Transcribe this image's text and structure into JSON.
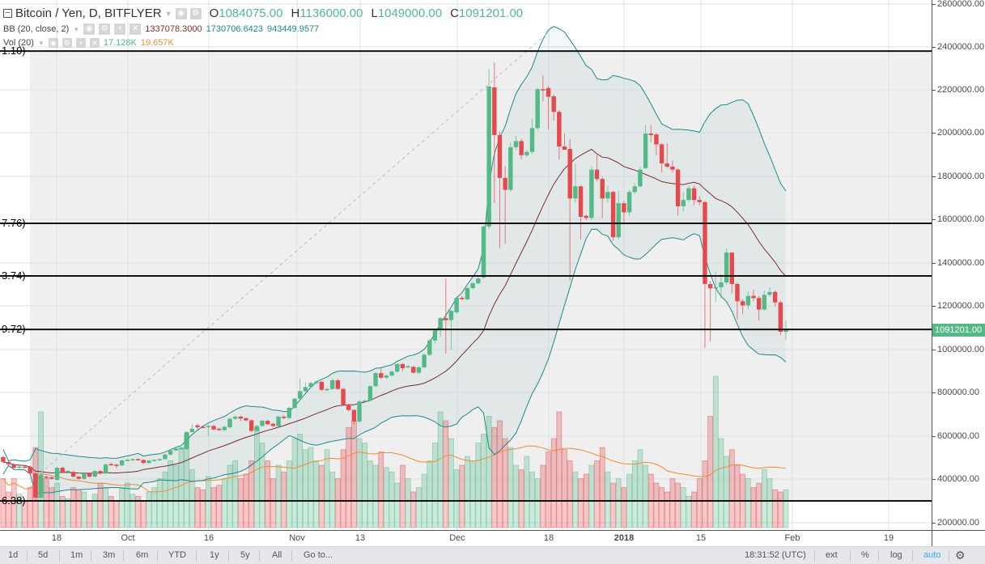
{
  "header": {
    "symbol": "Bitcoin / Yen, D, BITFLYER",
    "ohlc": [
      {
        "k": "O",
        "v": "1084075.00"
      },
      {
        "k": "H",
        "v": "1136000.00"
      },
      {
        "k": "L",
        "v": "1049000.00"
      },
      {
        "k": "C",
        "v": "1091201.00"
      }
    ],
    "bb": {
      "label": "BB (20, close, 2)",
      "basis": "1337078.3000",
      "upper": "1730706.6423",
      "lower": "943449.9577"
    },
    "vol": {
      "label": "Vol (20)",
      "value": "17.128K",
      "ma": "19.657K"
    }
  },
  "colors": {
    "up": "#53b987",
    "down": "#e5494d",
    "bb_band": "#1f8a8a",
    "bb_basis": "#7a2e2e",
    "vol_ma": "#f28c38",
    "price_tag": "#53b987",
    "accent": "#2fb5e6"
  },
  "price_axis": {
    "ticks": [
      "2600000.00",
      "2400000.00",
      "2200000.00",
      "2000000.00",
      "1800000.00",
      "1600000.00",
      "1400000.00",
      "1200000.00",
      "1000000.00",
      "800000.00",
      "600000.00",
      "400000.00",
      "200000.00"
    ],
    "last_price": "1091201.00"
  },
  "time_axis": {
    "ticks": [
      "18",
      "Oct",
      "16",
      "Nov",
      "13",
      "Dec",
      "18",
      "2018",
      "15",
      "Feb",
      "19"
    ]
  },
  "fib_levels": [
    {
      "label": "1.10)",
      "price": 2381000
    },
    {
      "label": "7.76)",
      "price": 1585000
    },
    {
      "label": "3.74)",
      "price": 1342000
    },
    {
      "label": "9.72)",
      "price": 1095000
    },
    {
      "label": "6.38)",
      "price": 303000
    }
  ],
  "trend_line": [
    {
      "candle": 6,
      "price": 411000
    },
    {
      "candle": 101,
      "price": 2467000
    }
  ],
  "toolbar": {
    "ranges": [
      "1d",
      "5d",
      "1m",
      "3m",
      "6m",
      "YTD",
      "1y",
      "5y",
      "All"
    ],
    "goto": "Go to...",
    "time": "18:31:52 (UTC)",
    "ext": "ext",
    "percent": "%",
    "log": "log",
    "auto": "auto"
  },
  "chart_data": {
    "type": "candlestick",
    "title": "Bitcoin / Yen, D, BITFLYER",
    "ylim": [
      200000,
      2600000
    ],
    "indicators": [
      "BB (20, close, 2)",
      "Vol (20)"
    ],
    "candles_ohlc": [
      [
        505000,
        512000,
        478000,
        483000
      ],
      [
        483000,
        490000,
        468000,
        472000
      ],
      [
        471000,
        476000,
        450000,
        456000
      ],
      [
        459000,
        466000,
        452000,
        461000
      ],
      [
        461000,
        468000,
        454000,
        460000
      ],
      [
        460000,
        465000,
        425000,
        430000
      ],
      [
        430000,
        436000,
        305000,
        318000
      ],
      [
        318000,
        430000,
        310000,
        423000
      ],
      [
        415000,
        422000,
        405000,
        410000
      ],
      [
        412000,
        418000,
        400000,
        405000
      ],
      [
        400000,
        462000,
        396000,
        456000
      ],
      [
        456000,
        462000,
        432000,
        437000
      ],
      [
        440000,
        446000,
        434000,
        441000
      ],
      [
        437000,
        442000,
        410000,
        415000
      ],
      [
        415000,
        420000,
        400000,
        405000
      ],
      [
        405000,
        434000,
        401000,
        430000
      ],
      [
        430000,
        435000,
        410000,
        415000
      ],
      [
        415000,
        445000,
        411000,
        441000
      ],
      [
        441000,
        446000,
        425000,
        430000
      ],
      [
        430000,
        476000,
        426000,
        471000
      ],
      [
        473000,
        480000,
        466000,
        470000
      ],
      [
        470000,
        475000,
        455000,
        467000
      ],
      [
        467000,
        494000,
        463000,
        490000
      ],
      [
        490000,
        497000,
        486000,
        492000
      ],
      [
        492000,
        500000,
        488000,
        496000
      ],
      [
        496000,
        500000,
        488000,
        492000
      ],
      [
        492000,
        496000,
        474000,
        478000
      ],
      [
        478000,
        493000,
        474000,
        489000
      ],
      [
        489000,
        495000,
        485000,
        492000
      ],
      [
        492000,
        500000,
        488000,
        496000
      ],
      [
        496000,
        521000,
        492000,
        517000
      ],
      [
        517000,
        540000,
        513000,
        536000
      ],
      [
        536000,
        550000,
        532000,
        545000
      ],
      [
        545000,
        552000,
        540000,
        547000
      ],
      [
        542000,
        626000,
        538000,
        621000
      ],
      [
        621000,
        660000,
        617000,
        636000
      ],
      [
        652000,
        660000,
        630000,
        643000
      ],
      [
        645000,
        652000,
        638000,
        643000
      ],
      [
        643000,
        654000,
        600000,
        649000
      ],
      [
        649000,
        655000,
        628000,
        633000
      ],
      [
        636000,
        642000,
        626000,
        630000
      ],
      [
        630000,
        650000,
        626000,
        645000
      ],
      [
        643000,
        688000,
        639000,
        682000
      ],
      [
        682000,
        698000,
        678000,
        692000
      ],
      [
        692000,
        697000,
        670000,
        683000
      ],
      [
        685000,
        690000,
        670000,
        675000
      ],
      [
        675000,
        680000,
        620000,
        626000
      ],
      [
        626000,
        654000,
        620000,
        649000
      ],
      [
        649000,
        678000,
        645000,
        673000
      ],
      [
        673000,
        678000,
        652000,
        657000
      ],
      [
        659000,
        664000,
        644000,
        649000
      ],
      [
        649000,
        697000,
        645000,
        692000
      ],
      [
        692000,
        698000,
        680000,
        686000
      ],
      [
        686000,
        738000,
        682000,
        733000
      ],
      [
        733000,
        780000,
        728000,
        775000
      ],
      [
        775000,
        870000,
        770000,
        810000
      ],
      [
        810000,
        850000,
        805000,
        829000
      ],
      [
        829000,
        855000,
        824000,
        847000
      ],
      [
        847000,
        860000,
        842000,
        853000
      ],
      [
        853000,
        858000,
        810000,
        816000
      ],
      [
        816000,
        825000,
        810000,
        820000
      ],
      [
        820000,
        870000,
        815000,
        860000
      ],
      [
        860000,
        866000,
        815000,
        820000
      ],
      [
        820000,
        826000,
        740000,
        748000
      ],
      [
        748000,
        754000,
        716000,
        723000
      ],
      [
        723000,
        728000,
        655000,
        670000
      ],
      [
        670000,
        768000,
        665000,
        762000
      ],
      [
        762000,
        772000,
        756000,
        766000
      ],
      [
        766000,
        838000,
        762000,
        833000
      ],
      [
        833000,
        898000,
        828000,
        893000
      ],
      [
        893000,
        920000,
        866000,
        872000
      ],
      [
        872000,
        888000,
        866000,
        882000
      ],
      [
        882000,
        906000,
        876000,
        900000
      ],
      [
        900000,
        940000,
        895000,
        935000
      ],
      [
        935000,
        940000,
        900000,
        916000
      ],
      [
        920000,
        930000,
        914000,
        925000
      ],
      [
        922000,
        928000,
        890000,
        895000
      ],
      [
        895000,
        926000,
        890000,
        920000
      ],
      [
        920000,
        984000,
        915000,
        978000
      ],
      [
        978000,
        1050000,
        972000,
        1044000
      ],
      [
        1044000,
        1096000,
        1030000,
        1090000
      ],
      [
        1092000,
        1152000,
        1060000,
        1147000
      ],
      [
        1147000,
        1330000,
        983000,
        1138000
      ],
      [
        1138000,
        1186000,
        1000000,
        1181000
      ],
      [
        1174000,
        1248000,
        1168000,
        1241000
      ],
      [
        1241000,
        1250000,
        1228000,
        1235000
      ],
      [
        1234000,
        1292000,
        1228000,
        1286000
      ],
      [
        1286000,
        1314000,
        1280000,
        1308000
      ],
      [
        1308000,
        1336000,
        1302000,
        1330000
      ],
      [
        1335000,
        1576000,
        1328000,
        1570000
      ],
      [
        1570000,
        2300000,
        1560000,
        2217000
      ],
      [
        2213000,
        2330000,
        1680000,
        1993000
      ],
      [
        1993000,
        2010000,
        1470000,
        1795000
      ],
      [
        1795000,
        1850000,
        1490000,
        1740000
      ],
      [
        1740000,
        1960000,
        1730000,
        1937000
      ],
      [
        1937000,
        1990000,
        1925000,
        1965000
      ],
      [
        1965000,
        1975000,
        1880000,
        1900000
      ],
      [
        1900000,
        1925000,
        1890000,
        1915000
      ],
      [
        1915000,
        2070000,
        1905000,
        2025000
      ],
      [
        2025000,
        2210000,
        2015000,
        2205000
      ],
      [
        2205000,
        2270000,
        2150000,
        2199000
      ],
      [
        2210000,
        2220000,
        2020000,
        2170000
      ],
      [
        2172000,
        2180000,
        2060000,
        2100000
      ],
      [
        2100000,
        2110000,
        1880000,
        1940000
      ],
      [
        1940000,
        2000000,
        1930000,
        1925000
      ],
      [
        1929000,
        1975000,
        1320000,
        1700000
      ],
      [
        1700000,
        1860000,
        1680000,
        1756000
      ],
      [
        1756000,
        1762000,
        1510000,
        1615000
      ],
      [
        1620000,
        1625000,
        1600000,
        1610000
      ],
      [
        1610000,
        1850000,
        1600000,
        1833000
      ],
      [
        1833000,
        1900000,
        1780000,
        1790000
      ],
      [
        1790000,
        1800000,
        1610000,
        1700000
      ],
      [
        1700000,
        1760000,
        1680000,
        1730000
      ],
      [
        1730000,
        1735000,
        1505000,
        1521000
      ],
      [
        1521000,
        1735000,
        1510000,
        1678000
      ],
      [
        1678000,
        1690000,
        1580000,
        1636000
      ],
      [
        1636000,
        1740000,
        1620000,
        1730000
      ],
      [
        1730000,
        1770000,
        1720000,
        1756000
      ],
      [
        1756000,
        1845000,
        1750000,
        1833000
      ],
      [
        1840000,
        2040000,
        1835000,
        2000000
      ],
      [
        2000000,
        2040000,
        1960000,
        1993000
      ],
      [
        1996000,
        2002000,
        1900000,
        1950000
      ],
      [
        1950000,
        1955000,
        1820000,
        1862000
      ],
      [
        1862000,
        1955000,
        1840000,
        1847000
      ],
      [
        1847000,
        1875000,
        1820000,
        1833000
      ],
      [
        1833000,
        1840000,
        1620000,
        1664000
      ],
      [
        1664000,
        1730000,
        1640000,
        1693000
      ],
      [
        1693000,
        1760000,
        1685000,
        1747000
      ],
      [
        1747000,
        1760000,
        1670000,
        1693000
      ],
      [
        1693000,
        1710000,
        1670000,
        1683000
      ],
      [
        1683000,
        1690000,
        1010000,
        1305000
      ],
      [
        1305000,
        1320000,
        1040000,
        1285000
      ],
      [
        1285000,
        1360000,
        1220000,
        1290000
      ],
      [
        1290000,
        1350000,
        1240000,
        1312000
      ],
      [
        1312000,
        1470000,
        1300000,
        1450000
      ],
      [
        1450000,
        1452000,
        1260000,
        1305000
      ],
      [
        1305000,
        1312000,
        1140000,
        1225000
      ],
      [
        1225000,
        1235000,
        1165000,
        1206000
      ],
      [
        1206000,
        1270000,
        1190000,
        1250000
      ],
      [
        1250000,
        1280000,
        1225000,
        1240000
      ],
      [
        1240000,
        1250000,
        1135000,
        1187000
      ],
      [
        1187000,
        1275000,
        1180000,
        1255000
      ],
      [
        1255000,
        1290000,
        1245000,
        1268000
      ],
      [
        1268000,
        1275000,
        1200000,
        1220000
      ],
      [
        1220000,
        1228000,
        1068000,
        1084000
      ],
      [
        1084075,
        1136000,
        1049000,
        1091201
      ]
    ],
    "volume_k": [
      22,
      16,
      22,
      15,
      12,
      18,
      36,
      52,
      22,
      18,
      20,
      14,
      13,
      18,
      17,
      16,
      12,
      15,
      20,
      18,
      14,
      12,
      18,
      20,
      15,
      14,
      12,
      16,
      18,
      22,
      25,
      30,
      28,
      36,
      42,
      26,
      18,
      17,
      23,
      18,
      19,
      22,
      28,
      30,
      22,
      24,
      30,
      45,
      38,
      30,
      22,
      28,
      25,
      30,
      40,
      42,
      35,
      36,
      30,
      28,
      35,
      25,
      22,
      35,
      45,
      48,
      40,
      38,
      30,
      28,
      34,
      27,
      25,
      20,
      28,
      22,
      16,
      18,
      24,
      30,
      38,
      52,
      48,
      40,
      26,
      28,
      32,
      30,
      38,
      42,
      50,
      45,
      48,
      40,
      36,
      28,
      26,
      32,
      25,
      22,
      28,
      34,
      40,
      52,
      35,
      30,
      25,
      22,
      24,
      28,
      30,
      36,
      25,
      20,
      22,
      18,
      24,
      30,
      35,
      28,
      24,
      20,
      18,
      16,
      22,
      20,
      18,
      14,
      16,
      22,
      30,
      50,
      68,
      40,
      32,
      35,
      28,
      24,
      22,
      18,
      20,
      26,
      22,
      17,
      16,
      17
    ]
  }
}
